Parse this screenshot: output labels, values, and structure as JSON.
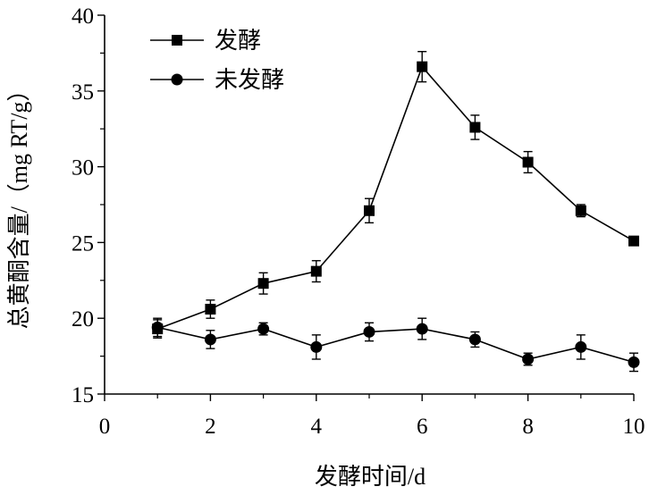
{
  "chart_data": {
    "type": "line",
    "title": "",
    "xlabel": "发酵时间/d",
    "ylabel": "总黄酮含量/（mg RT/g）",
    "xlim": [
      0,
      10
    ],
    "ylim": [
      15,
      40
    ],
    "xticks": [
      "0",
      "2",
      "4",
      "6",
      "8",
      "10"
    ],
    "yticks": [
      "15",
      "20",
      "25",
      "30",
      "35",
      "40"
    ],
    "grid": false,
    "legend_position": "top-left",
    "x": [
      1,
      2,
      3,
      4,
      5,
      6,
      7,
      8,
      9,
      10
    ],
    "series": [
      {
        "name": "发酵",
        "marker": "square",
        "values": [
          19.3,
          20.6,
          22.3,
          23.1,
          27.1,
          36.6,
          32.6,
          30.3,
          27.1,
          25.1
        ],
        "errors": [
          0.6,
          0.6,
          0.7,
          0.7,
          0.8,
          1.0,
          0.8,
          0.7,
          0.4,
          0.3
        ]
      },
      {
        "name": "未发酵",
        "marker": "circle",
        "values": [
          19.4,
          18.6,
          19.3,
          18.1,
          19.1,
          19.3,
          18.6,
          17.3,
          18.1,
          17.1
        ],
        "errors": [
          0.6,
          0.6,
          0.4,
          0.8,
          0.6,
          0.7,
          0.5,
          0.4,
          0.8,
          0.6
        ]
      }
    ],
    "colors": {
      "line": "#000000",
      "marker": "#000000"
    }
  }
}
